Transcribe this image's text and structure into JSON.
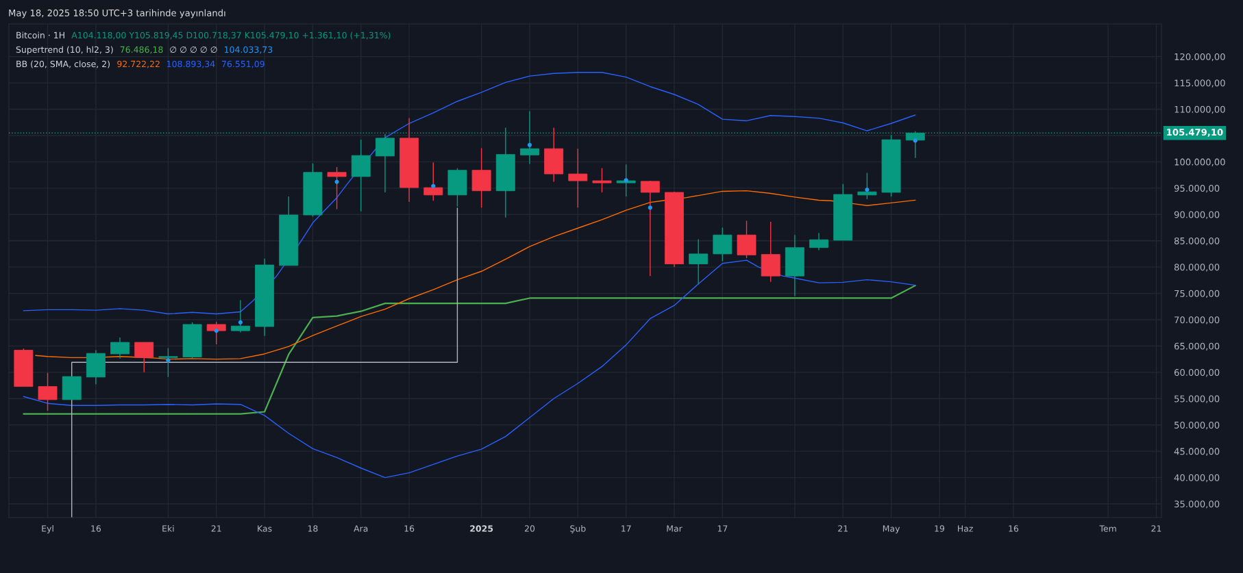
{
  "chart_data": {
    "type": "candlestick",
    "title": "Bitcoin · 1H",
    "annotations": [
      "May 18, 2025 18:50 UTC+3 tarihinde yayınlandı",
      "A104.118,00 Y105.819,45 D100.718,37 K105.479,10 +1.361,10 (+1,31%)",
      "Supertrend (10, hl2, 3)",
      "76.486,18",
      "∅ ∅ ∅ ∅ ∅",
      "104.033,73",
      "BB (20, SMA, close, 2)",
      "92.722,22",
      "108.893,34",
      "76.551,09"
    ],
    "x": [
      "2024-08-26",
      "2024-09-02",
      "2024-09-09",
      "2024-09-16",
      "2024-09-23",
      "2024-09-30",
      "2024-10-07",
      "2024-10-14",
      "2024-10-21",
      "2024-10-28",
      "2024-11-04",
      "2024-11-11",
      "2024-11-18",
      "2024-11-25",
      "2024-12-02",
      "2024-12-09",
      "2024-12-16",
      "2024-12-23",
      "2024-12-30",
      "2025-01-06",
      "2025-01-13",
      "2025-01-20",
      "2025-01-27",
      "2025-02-03",
      "2025-02-10",
      "2025-02-17",
      "2025-02-24",
      "2025-03-03",
      "2025-03-10",
      "2025-03-17",
      "2025-03-24",
      "2025-03-31",
      "2025-04-07",
      "2025-04-14",
      "2025-04-21",
      "2025-04-28",
      "2025-05-05",
      "2025-05-12"
    ],
    "ohlc": [
      [
        64200,
        64500,
        57300,
        57300
      ],
      [
        57300,
        59900,
        52700,
        54800
      ],
      [
        54800,
        59200,
        54800,
        59200
      ],
      [
        59100,
        64200,
        57700,
        63600
      ],
      [
        63500,
        66600,
        62600,
        65700
      ],
      [
        65700,
        65700,
        60000,
        62800
      ],
      [
        62800,
        64600,
        59100,
        63000
      ],
      [
        62900,
        69500,
        62700,
        69100
      ],
      [
        69100,
        69600,
        65300,
        67900
      ],
      [
        67900,
        73700,
        67600,
        68800
      ],
      [
        68700,
        81600,
        66900,
        80400
      ],
      [
        80300,
        93400,
        80300,
        89900
      ],
      [
        89900,
        99700,
        89600,
        98000
      ],
      [
        98000,
        99000,
        91000,
        97200
      ],
      [
        97200,
        104200,
        90600,
        101200
      ],
      [
        101100,
        105300,
        94200,
        104500
      ],
      [
        104500,
        108300,
        92400,
        95100
      ],
      [
        95100,
        99900,
        92600,
        93700
      ],
      [
        93700,
        98800,
        91500,
        98400
      ],
      [
        98400,
        102600,
        91300,
        94500
      ],
      [
        94500,
        106500,
        89400,
        101400
      ],
      [
        101300,
        109600,
        99600,
        102500
      ],
      [
        102500,
        106500,
        96200,
        97700
      ],
      [
        97700,
        102500,
        91300,
        96400
      ],
      [
        96400,
        98800,
        94200,
        96000
      ],
      [
        96000,
        99500,
        93400,
        96400
      ],
      [
        96300,
        96400,
        78300,
        94200
      ],
      [
        94200,
        94300,
        80000,
        80600
      ],
      [
        80600,
        85300,
        76700,
        82500
      ],
      [
        82500,
        87500,
        81100,
        86100
      ],
      [
        86100,
        88800,
        81700,
        82300
      ],
      [
        82400,
        88600,
        77200,
        78300
      ],
      [
        78300,
        86100,
        74500,
        83700
      ],
      [
        83700,
        86500,
        83200,
        85200
      ],
      [
        85100,
        95800,
        85100,
        93800
      ],
      [
        93700,
        97900,
        92900,
        94300
      ],
      [
        94200,
        105100,
        93400,
        104200
      ],
      [
        104118.0,
        105819.45,
        100718.37,
        105479.1
      ]
    ],
    "colors": [
      "#f23645",
      "#f23645",
      "#089981",
      "#089981",
      "#089981",
      "#f23645",
      "#089981",
      "#089981",
      "#f23645",
      "#089981",
      "#089981",
      "#089981",
      "#089981",
      "#f23645",
      "#089981",
      "#089981",
      "#f23645",
      "#f23645",
      "#089981",
      "#f23645",
      "#089981",
      "#089981",
      "#f23645",
      "#f23645",
      "#f23645",
      "#089981",
      "#f23645",
      "#f23645",
      "#089981",
      "#089981",
      "#f23645",
      "#f23645",
      "#089981",
      "#089981",
      "#089981",
      "#089981",
      "#089981",
      "#089981"
    ],
    "series": [
      {
        "type": "line",
        "color": "#4caf50",
        "values": [
          52100,
          52100,
          52100,
          52100,
          52100,
          52100,
          52100,
          52100,
          52100,
          52100,
          52500,
          63400,
          70400,
          70700,
          71600,
          73100,
          73100,
          73100,
          73100,
          73100,
          73100,
          74100,
          74100,
          74100,
          74100,
          74100,
          74100,
          74100,
          74100,
          74100,
          74100,
          74100,
          74100,
          74100,
          74100,
          74100,
          74100,
          76486.18
        ]
      },
      {
        "type": "scatter",
        "color": "#2196f3",
        "marker": "circle",
        "x": [
          "2024-10-07",
          "2024-10-21",
          "2024-10-28",
          "2024-11-25",
          "2024-12-23",
          "2025-01-20",
          "2025-02-17",
          "2025-02-24",
          "2025-04-28",
          "2025-05-12"
        ],
        "values": [
          62300,
          67900,
          69500,
          96200,
          95400,
          103200,
          96500,
          91300,
          94700,
          104033.73
        ]
      },
      {
        "type": "line",
        "color": "#ff6d00",
        "x": [
          "2024-08-29T12:00",
          "2024-09-02",
          "2024-09-09",
          "2024-09-12T12:00",
          "2024-09-19T12:00",
          "2024-09-23",
          "2024-09-26T12:00",
          "2024-10-03T12:00",
          "2024-10-07",
          "2024-10-14",
          "2024-10-21",
          "2024-10-28",
          "2024-11-04",
          "2024-11-11",
          "2024-11-18",
          "2024-11-25",
          "2024-12-02",
          "2024-12-09",
          "2024-12-16",
          "2024-12-23",
          "2024-12-30",
          "2025-01-06",
          "2025-01-13",
          "2025-01-20",
          "2025-01-27",
          "2025-02-03",
          "2025-02-10",
          "2025-02-17",
          "2025-02-24",
          "2025-02-27T12:00",
          "2025-03-06T12:00",
          "2025-03-10",
          "2025-03-17",
          "2025-03-24",
          "2025-03-31",
          "2025-04-07",
          "2025-04-14",
          "2025-04-17T12:00",
          "2025-04-24T12:00",
          "2025-04-28",
          "2025-05-05",
          "2025-05-12"
        ],
        "values": [
          63200,
          63000,
          62800,
          62800,
          62900,
          63000,
          62900,
          62700,
          62500,
          62600,
          62500,
          62600,
          63500,
          64900,
          67000,
          68800,
          70600,
          72000,
          74000,
          75700,
          77600,
          79200,
          81500,
          83900,
          85800,
          87400,
          89000,
          90800,
          92300,
          92600,
          93200,
          93600,
          94400,
          94500,
          94000,
          93300,
          92700,
          92600,
          92000,
          91700,
          92200,
          92722.22
        ]
      },
      {
        "type": "line",
        "color": "#2962ff",
        "x": [
          "2024-08-26",
          "2024-09-02",
          "2024-09-09",
          "2024-09-16",
          "2024-09-23",
          "2024-09-30",
          "2024-10-07",
          "2024-10-14",
          "2024-10-21",
          "2024-10-28",
          "2024-10-31T12:00",
          "2024-11-07T12:00",
          "2024-11-14T12:00",
          "2024-11-18",
          "2024-11-25",
          "2024-11-28T12:00",
          "2024-12-05T12:00",
          "2024-12-09",
          "2024-12-16",
          "2024-12-23",
          "2024-12-30",
          "2025-01-06",
          "2025-01-13",
          "2025-01-20",
          "2025-01-27",
          "2025-02-03",
          "2025-02-10",
          "2025-02-17",
          "2025-02-24",
          "2025-03-03",
          "2025-03-10",
          "2025-03-17",
          "2025-03-24",
          "2025-03-31",
          "2025-04-07",
          "2025-04-14",
          "2025-04-21",
          "2025-04-28",
          "2025-05-05",
          "2025-05-12"
        ],
        "values": [
          71700,
          71900,
          71900,
          71800,
          72100,
          71800,
          71100,
          71400,
          71100,
          71500,
          73500,
          78300,
          84800,
          88400,
          93200,
          96200,
          101800,
          104600,
          107300,
          109300,
          111500,
          113200,
          115100,
          116300,
          116800,
          117000,
          117000,
          116100,
          114300,
          112800,
          110900,
          108100,
          107800,
          108800,
          108600,
          108300,
          107400,
          105900,
          107300,
          108893.34
        ]
      },
      {
        "type": "line",
        "color": "#2962ff",
        "x": [
          "2024-08-26",
          "2024-09-02",
          "2024-09-09",
          "2024-09-16",
          "2024-09-23",
          "2024-09-30",
          "2024-10-07",
          "2024-10-14",
          "2024-10-21",
          "2024-10-28",
          "2024-11-04",
          "2024-11-11",
          "2024-11-18",
          "2024-11-25",
          "2024-12-02",
          "2024-12-09",
          "2024-12-16",
          "2024-12-23",
          "2024-12-30",
          "2025-01-06",
          "2025-01-13",
          "2025-01-20",
          "2025-01-27",
          "2025-02-03",
          "2025-02-10",
          "2025-02-17",
          "2025-02-24",
          "2025-03-03",
          "2025-03-10",
          "2025-03-17",
          "2025-03-24",
          "2025-03-27T12:00",
          "2025-04-03T12:00",
          "2025-04-07",
          "2025-04-14",
          "2025-04-21",
          "2025-04-28",
          "2025-05-05",
          "2025-05-12"
        ],
        "values": [
          55400,
          54100,
          53700,
          53700,
          53800,
          53800,
          53900,
          53800,
          54000,
          53900,
          51800,
          48400,
          45500,
          43800,
          41800,
          40000,
          40900,
          42500,
          44100,
          45400,
          47800,
          51400,
          55000,
          57900,
          61100,
          65200,
          70200,
          72700,
          76800,
          80700,
          81300,
          80000,
          78300,
          77900,
          77000,
          77100,
          77600,
          77200,
          76551.09
        ]
      },
      {
        "type": "line",
        "color": "#b2b5be",
        "line_style": "solid",
        "x": [
          "2024-09-09",
          "2024-09-09",
          "2024-12-30",
          "2024-12-30"
        ],
        "values": [
          32400,
          61900,
          61900,
          91200
        ]
      }
    ],
    "xlim": [
      "2024-08-21T18:00",
      "2025-07-22T12:00"
    ],
    "ylim": [
      32400,
      126200
    ],
    "xticks": [
      {
        "value": "2024-09-02",
        "label": "Eyl"
      },
      {
        "value": "2024-09-16",
        "label": "16"
      },
      {
        "value": "2024-10-07",
        "label": "Eki"
      },
      {
        "value": "2024-10-21",
        "label": "21"
      },
      {
        "value": "2024-11-04",
        "label": "Kas"
      },
      {
        "value": "2024-11-18",
        "label": "18"
      },
      {
        "value": "2024-12-02",
        "label": "Ara"
      },
      {
        "value": "2024-12-16",
        "label": "16"
      },
      {
        "value": "2025-01-06",
        "label": "2025"
      },
      {
        "value": "2025-01-20",
        "label": "20"
      },
      {
        "value": "2025-02-03",
        "label": "Şub"
      },
      {
        "value": "2025-02-17",
        "label": "17"
      },
      {
        "value": "2025-03-03",
        "label": "Mar"
      },
      {
        "value": "2025-03-17",
        "label": "17"
      },
      {
        "value": "2025-04-07",
        "label": null
      },
      {
        "value": "2025-04-21",
        "label": "21"
      },
      {
        "value": "2025-05-05",
        "label": "May"
      },
      {
        "value": "2025-05-19",
        "label": "19"
      },
      {
        "value": "2025-05-26T12:00",
        "label": "Haz"
      },
      {
        "value": "2025-06-09T12:00",
        "label": "16"
      },
      {
        "value": "2025-07-07",
        "label": "Tem"
      },
      {
        "value": "2025-07-21",
        "label": "21"
      }
    ],
    "yticks": [
      {
        "value": 35000,
        "label": "35.000,00"
      },
      {
        "value": 40000,
        "label": "40.000,00"
      },
      {
        "value": 45000,
        "label": "45.000,00"
      },
      {
        "value": 50000,
        "label": "50.000,00"
      },
      {
        "value": 55000,
        "label": "55.000,00"
      },
      {
        "value": 60000,
        "label": "60.000,00"
      },
      {
        "value": 65000,
        "label": "65.000,00"
      },
      {
        "value": 70000,
        "label": "70.000,00"
      },
      {
        "value": 75000,
        "label": "75.000,00"
      },
      {
        "value": 80000,
        "label": "80.000,00"
      },
      {
        "value": 85000,
        "label": "85.000,00"
      },
      {
        "value": 90000,
        "label": "90.000,00"
      },
      {
        "value": 95000,
        "label": "95.000,00"
      },
      {
        "value": 100000,
        "label": "100.000,00"
      },
      {
        "value": 105000,
        "label": null
      },
      {
        "value": 110000,
        "label": "110.000,00"
      },
      {
        "value": 115000,
        "label": "115.000,00"
      },
      {
        "value": 120000,
        "label": "120.000,00"
      }
    ],
    "grid": true,
    "ref_lines": [
      {
        "axis": "y",
        "value": 105479.1,
        "label": "105.479,10",
        "color": "#089981",
        "line_style": "dotted"
      }
    ]
  }
}
